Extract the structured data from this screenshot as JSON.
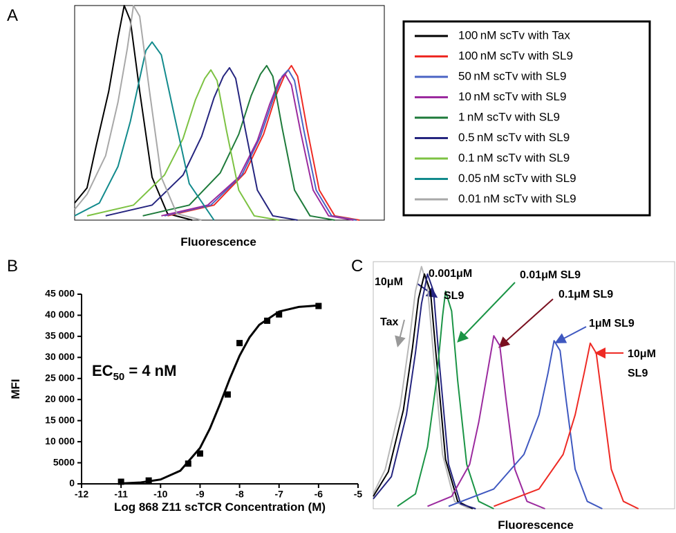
{
  "chart_data": [
    {
      "type": "line",
      "panel": "A",
      "xlabel": "Fluorescence",
      "xlim": [
        0,
        100
      ],
      "ylim": [
        0,
        100
      ],
      "series": [
        {
          "name": "100 nM scTv with Tax",
          "color": "#000000",
          "x": [
            0,
            4,
            7,
            11,
            14,
            16,
            18,
            21,
            25,
            30,
            38
          ],
          "values": [
            8,
            15,
            35,
            60,
            85,
            100,
            93,
            60,
            20,
            3,
            0
          ]
        },
        {
          "name": "100 nM scTv with SL9",
          "color": "#ee2a24",
          "x": [
            30,
            45,
            55,
            61,
            65,
            68,
            70,
            72,
            75,
            79,
            84,
            92
          ],
          "values": [
            2,
            7,
            22,
            40,
            58,
            68,
            72,
            67,
            43,
            14,
            2,
            0
          ]
        },
        {
          "name": "50 nM scTv with SL9",
          "color": "#4a63c4",
          "x": [
            29,
            44,
            54,
            60,
            64,
            67,
            69,
            71,
            74,
            78,
            83,
            91
          ],
          "values": [
            2,
            7,
            21,
            39,
            56,
            67,
            70,
            65,
            42,
            14,
            2,
            0
          ]
        },
        {
          "name": "10 nM scTv with SL9",
          "color": "#9b2a9e",
          "x": [
            28,
            43,
            53,
            59,
            63,
            66,
            68,
            70,
            73,
            77,
            82,
            90
          ],
          "values": [
            2,
            7,
            20,
            37,
            54,
            65,
            68,
            63,
            41,
            14,
            2,
            0
          ]
        },
        {
          "name": "1 nM scTv with SL9",
          "color": "#1d7a3a",
          "x": [
            22,
            37,
            47,
            53,
            57,
            60,
            62,
            64,
            67,
            71,
            76,
            84
          ],
          "values": [
            2,
            7,
            22,
            40,
            58,
            68,
            72,
            67,
            43,
            14,
            2,
            0
          ]
        },
        {
          "name": "0.5 nM scTv with SL9",
          "color": "#25257f",
          "x": [
            10,
            25,
            35,
            41,
            45,
            48,
            50,
            52,
            55,
            59,
            64,
            72
          ],
          "values": [
            2,
            7,
            21,
            39,
            57,
            67,
            71,
            66,
            43,
            14,
            2,
            0
          ]
        },
        {
          "name": "0.1 nM scTv with SL9",
          "color": "#7cc242",
          "x": [
            4,
            19,
            29,
            35,
            39,
            42,
            44,
            46,
            49,
            53,
            58,
            66
          ],
          "values": [
            2,
            7,
            21,
            38,
            56,
            66,
            70,
            65,
            42,
            14,
            2,
            0
          ]
        },
        {
          "name": "0.05 nM scTv with SL9",
          "color": "#118a8c",
          "x": [
            0,
            8,
            14,
            18,
            21,
            23,
            25,
            28,
            32,
            37,
            45
          ],
          "values": [
            2,
            8,
            25,
            46,
            66,
            79,
            83,
            77,
            50,
            17,
            0
          ]
        },
        {
          "name": "0.01 nM scTv with SL9",
          "color": "#a8a8a8",
          "x": [
            0,
            4,
            10,
            14,
            17,
            19,
            21,
            24,
            28,
            33,
            41
          ],
          "values": [
            5,
            12,
            30,
            55,
            80,
            100,
            95,
            62,
            20,
            3,
            0
          ]
        }
      ]
    },
    {
      "type": "scatter",
      "panel": "B",
      "annotation": [
        "EC",
        "50",
        " = 4 nM"
      ],
      "xlabel": "Log 868 Z11 scTCR Concentration (M)",
      "ylabel": "MFI",
      "color": "#000000",
      "x": [
        -11,
        -10.3,
        -9.3,
        -9,
        -8.3,
        -8,
        -7.3,
        -7,
        -6
      ],
      "values": [
        500,
        800,
        4800,
        7200,
        21200,
        33400,
        38700,
        40200,
        42200
      ],
      "fit": {
        "x": [
          -11,
          -10.5,
          -10,
          -9.5,
          -9,
          -8.75,
          -8.5,
          -8.25,
          -8,
          -7.75,
          -7.5,
          -7,
          -6.5,
          -6
        ],
        "values": [
          106,
          336,
          1040,
          3120,
          8530,
          13120,
          18800,
          24890,
          30400,
          34720,
          37740,
          40870,
          41970,
          42330
        ]
      },
      "xlim": [
        -12,
        -5
      ],
      "xticks": [
        -12,
        -11,
        -10,
        -9,
        -8,
        -7,
        -6,
        -5
      ],
      "ylim": [
        0,
        45000
      ],
      "yticks": [
        0,
        5000,
        {
          "value": 10000,
          "label": "10 000"
        },
        {
          "value": 15000,
          "label": "15 000"
        },
        {
          "value": 20000,
          "label": "20 000"
        },
        {
          "value": 25000,
          "label": "25 000"
        },
        {
          "value": 30000,
          "label": "30 000"
        },
        {
          "value": 35000,
          "label": "35 000"
        },
        {
          "value": 40000,
          "label": "40 000"
        },
        {
          "value": 45000,
          "label": "45 000"
        }
      ]
    },
    {
      "type": "line",
      "panel": "C",
      "xlabel": "Fluorescence",
      "xlim": [
        0,
        100
      ],
      "ylim": [
        0,
        100
      ],
      "annotations": [
        "10μM",
        "Tax",
        "0.001μM",
        "SL9",
        "0.01μM SL9",
        "0.1μM SL9",
        "1μM SL9",
        "10μM",
        "SL9"
      ],
      "series": [
        {
          "color": "#b8b8b8",
          "x": [
            0,
            4,
            9,
            12,
            14,
            16,
            18,
            20,
            23,
            27,
            32
          ],
          "values": [
            6,
            16,
            42,
            68,
            88,
            98,
            90,
            62,
            22,
            3,
            0
          ]
        },
        {
          "color": "#000000",
          "x": [
            0,
            5,
            10,
            13,
            15,
            17,
            19,
            21,
            24,
            28,
            33
          ],
          "values": [
            5,
            15,
            40,
            65,
            85,
            95,
            88,
            60,
            20,
            3,
            0
          ]
        },
        {
          "color": "#25257f",
          "x": [
            0,
            6,
            11,
            14,
            16,
            18,
            20,
            22,
            25,
            29,
            34
          ],
          "values": [
            4,
            13,
            38,
            63,
            83,
            95,
            88,
            58,
            18,
            2,
            0
          ]
        },
        {
          "color": "#1a9445",
          "x": [
            8,
            14,
            18,
            21,
            23,
            24,
            26,
            28,
            31,
            35,
            40
          ],
          "values": [
            1,
            6,
            25,
            52,
            78,
            88,
            80,
            52,
            18,
            3,
            0
          ]
        },
        {
          "color": "#9b2a9e",
          "x": [
            18,
            26,
            32,
            35,
            38,
            40,
            42,
            44,
            47,
            51,
            57
          ],
          "values": [
            1,
            5,
            18,
            35,
            56,
            70,
            66,
            45,
            16,
            3,
            0
          ]
        },
        {
          "color": "#3f58c0",
          "x": [
            25,
            40,
            50,
            55,
            58,
            60,
            62,
            64,
            67,
            71,
            76
          ],
          "values": [
            1,
            8,
            22,
            38,
            55,
            68,
            64,
            44,
            16,
            3,
            0
          ]
        },
        {
          "color": "#ee2a24",
          "x": [
            40,
            55,
            63,
            67,
            70,
            72,
            74,
            76,
            79,
            83,
            88
          ],
          "values": [
            1,
            8,
            22,
            38,
            55,
            67,
            63,
            44,
            16,
            3,
            0
          ]
        }
      ]
    }
  ]
}
